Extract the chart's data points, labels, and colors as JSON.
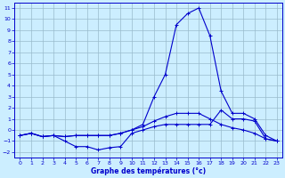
{
  "xlabel": "Graphe des températures (°c)",
  "background_color": "#cceeff",
  "grid_color": "#99bbcc",
  "line_color": "#0000cc",
  "xlim": [
    -0.5,
    23.5
  ],
  "ylim": [
    -2.5,
    11.5
  ],
  "yticks": [
    -2,
    -1,
    0,
    1,
    2,
    3,
    4,
    5,
    6,
    7,
    8,
    9,
    10,
    11
  ],
  "xticks": [
    0,
    1,
    2,
    3,
    4,
    5,
    6,
    7,
    8,
    9,
    10,
    11,
    12,
    13,
    14,
    15,
    16,
    17,
    18,
    19,
    20,
    21,
    22,
    23
  ],
  "series": [
    {
      "x": [
        0,
        1,
        2,
        3,
        4,
        5,
        6,
        7,
        8,
        9,
        10,
        11,
        12,
        13,
        14,
        15,
        16,
        17,
        18,
        19,
        20,
        21,
        22,
        23
      ],
      "y": [
        -0.5,
        -0.3,
        -0.6,
        -0.5,
        -1.0,
        -1.5,
        -1.5,
        -1.8,
        -1.6,
        -1.5,
        -0.3,
        0.0,
        0.3,
        0.5,
        0.5,
        0.5,
        0.5,
        0.5,
        1.8,
        1.0,
        1.0,
        0.8,
        -0.8,
        -1.0
      ]
    },
    {
      "x": [
        0,
        1,
        2,
        3,
        4,
        5,
        6,
        7,
        8,
        9,
        10,
        11,
        12,
        13,
        14,
        15,
        16,
        17,
        18,
        19,
        20,
        21,
        22,
        23
      ],
      "y": [
        -0.5,
        -0.3,
        -0.6,
        -0.5,
        -0.6,
        -0.5,
        -0.5,
        -0.5,
        -0.5,
        -0.3,
        0.0,
        0.5,
        3.0,
        5.0,
        9.5,
        10.5,
        11.0,
        8.5,
        3.5,
        1.5,
        1.5,
        1.0,
        -0.5,
        -1.0
      ]
    },
    {
      "x": [
        0,
        1,
        2,
        3,
        4,
        5,
        6,
        7,
        8,
        9,
        10,
        11,
        12,
        13,
        14,
        15,
        16,
        17,
        18,
        19,
        20,
        21,
        22,
        23
      ],
      "y": [
        -0.5,
        -0.3,
        -0.6,
        -0.5,
        -0.6,
        -0.5,
        -0.5,
        -0.5,
        -0.5,
        -0.3,
        0.0,
        0.3,
        0.8,
        1.2,
        1.5,
        1.5,
        1.5,
        1.0,
        0.5,
        0.2,
        0.0,
        -0.3,
        -0.8,
        -1.0
      ]
    }
  ]
}
